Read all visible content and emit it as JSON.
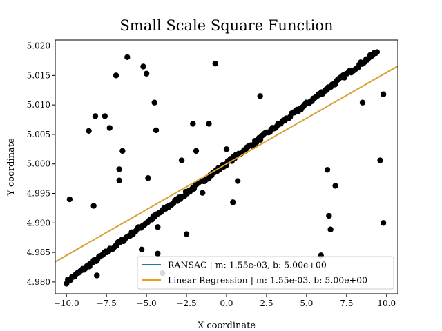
{
  "chart_data": {
    "type": "scatter",
    "title": "Small Scale Square Function",
    "xlabel": "X coordinate",
    "ylabel": "Y coordinate",
    "xlim": [
      -10.7,
      10.7
    ],
    "ylim": [
      4.978,
      5.021
    ],
    "x_ticks": [
      -10.0,
      -7.5,
      -5.0,
      -2.5,
      0.0,
      2.5,
      5.0,
      7.5,
      10.0
    ],
    "x_tick_labels": [
      "−10.0",
      "−7.5",
      "−5.0",
      "−2.5",
      "0.0",
      "2.5",
      "5.0",
      "7.5",
      "10.0"
    ],
    "y_ticks": [
      4.98,
      4.985,
      4.99,
      4.995,
      5.0,
      5.005,
      5.01,
      5.015,
      5.02
    ],
    "y_tick_labels": [
      "4.980",
      "4.985",
      "4.990",
      "4.995",
      "5.000",
      "5.005",
      "5.010",
      "5.015",
      "5.020"
    ],
    "grid": false,
    "legend_position": "lower-right",
    "point_color": "#000000",
    "inlier_line": {
      "x": [
        -10.0,
        9.4
      ],
      "y": [
        4.98,
        5.019
      ]
    },
    "outliers": [
      {
        "x": -9.8,
        "y": 4.994
      },
      {
        "x": -8.6,
        "y": 5.0056
      },
      {
        "x": -8.3,
        "y": 4.9929
      },
      {
        "x": -8.2,
        "y": 5.0081
      },
      {
        "x": -7.6,
        "y": 5.0081
      },
      {
        "x": -7.3,
        "y": 5.0061
      },
      {
        "x": -6.9,
        "y": 5.015
      },
      {
        "x": -6.7,
        "y": 4.9991
      },
      {
        "x": -6.7,
        "y": 4.9972
      },
      {
        "x": -6.5,
        "y": 5.0022
      },
      {
        "x": -6.2,
        "y": 5.0181
      },
      {
        "x": -5.2,
        "y": 5.0165
      },
      {
        "x": -5.0,
        "y": 5.0153
      },
      {
        "x": -4.9,
        "y": 4.9976
      },
      {
        "x": -4.5,
        "y": 5.0104
      },
      {
        "x": -4.4,
        "y": 5.0057
      },
      {
        "x": -4.3,
        "y": 4.9893
      },
      {
        "x": -4.3,
        "y": 4.9848
      },
      {
        "x": -2.8,
        "y": 5.0006
      },
      {
        "x": -2.5,
        "y": 4.9881
      },
      {
        "x": -2.1,
        "y": 5.0068
      },
      {
        "x": -1.9,
        "y": 5.0022
      },
      {
        "x": -1.5,
        "y": 4.9951
      },
      {
        "x": -1.1,
        "y": 5.0068
      },
      {
        "x": -0.7,
        "y": 5.017
      },
      {
        "x": 0.0,
        "y": 5.0025
      },
      {
        "x": 0.4,
        "y": 4.9935
      },
      {
        "x": 0.7,
        "y": 4.9971
      },
      {
        "x": 2.1,
        "y": 5.0115
      },
      {
        "x": 5.9,
        "y": 4.9845
      },
      {
        "x": 6.3,
        "y": 4.999
      },
      {
        "x": 6.4,
        "y": 4.9912
      },
      {
        "x": 6.5,
        "y": 4.9889
      },
      {
        "x": 6.8,
        "y": 4.9963
      },
      {
        "x": 8.5,
        "y": 5.0104
      },
      {
        "x": 9.6,
        "y": 5.0006
      },
      {
        "x": 9.8,
        "y": 5.0118
      },
      {
        "x": 9.8,
        "y": 4.99
      },
      {
        "x": -8.1,
        "y": 4.9811
      },
      {
        "x": -4.0,
        "y": 4.9815
      },
      {
        "x": -5.3,
        "y": 4.9855
      }
    ],
    "series": [
      {
        "name": "RANSAC | m: 1.55e-03, b: 5.00e+00",
        "type": "line",
        "color": "#1f77b4",
        "slope": 0.00155,
        "intercept": 5.0,
        "x": [
          -10.7,
          10.7
        ],
        "y": [
          4.983415,
          5.016585
        ]
      },
      {
        "name": "Linear Regression | m: 1.55e-03, b: 5.00e+00",
        "type": "line",
        "color": "#e8a020",
        "slope": 0.00155,
        "intercept": 5.0,
        "x": [
          -10.7,
          10.7
        ],
        "y": [
          4.983415,
          5.016585
        ]
      }
    ]
  }
}
